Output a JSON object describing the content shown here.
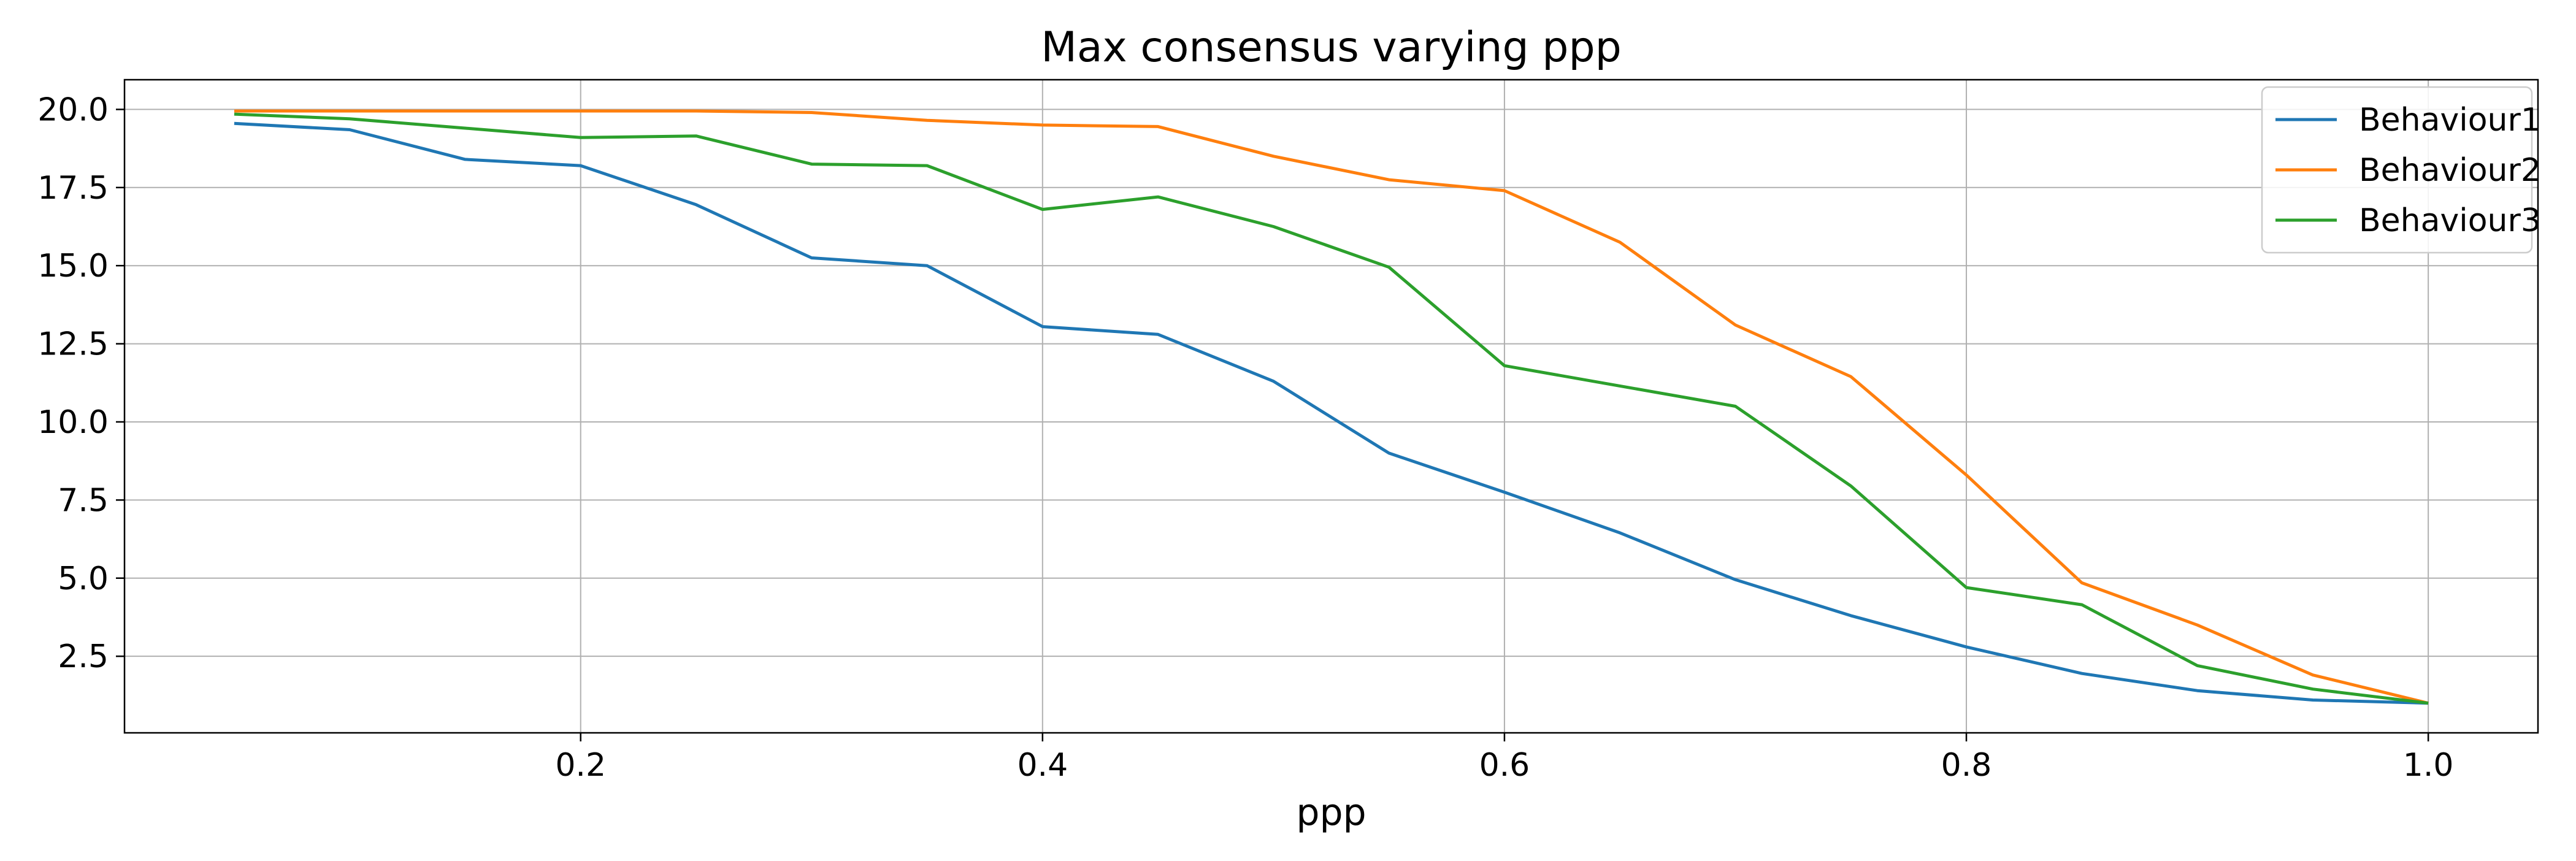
{
  "chart_data": {
    "type": "line",
    "title": "Max consensus varying ppp",
    "xlabel": "ppp",
    "ylabel": "",
    "xlim": [
      0.05,
      1.0
    ],
    "ylim": [
      1.0,
      20.0
    ],
    "x": [
      0.05,
      0.1,
      0.15,
      0.2,
      0.25,
      0.3,
      0.35,
      0.4,
      0.45,
      0.5,
      0.55,
      0.6,
      0.65,
      0.7,
      0.75,
      0.8,
      0.85,
      0.9,
      0.95,
      1.0
    ],
    "x_ticks": [
      0.2,
      0.4,
      0.6,
      0.8,
      1.0
    ],
    "x_tick_labels": [
      "0.2",
      "0.4",
      "0.6",
      "0.8",
      "1.0"
    ],
    "y_ticks": [
      2.5,
      5.0,
      7.5,
      10.0,
      12.5,
      15.0,
      17.5,
      20.0
    ],
    "y_tick_labels": [
      "2.5",
      "5.0",
      "7.5",
      "10.0",
      "12.5",
      "15.0",
      "17.5",
      "20.0"
    ],
    "grid": true,
    "legend_position": "top-right",
    "series": [
      {
        "name": "Behaviour1",
        "color": "#1f77b4",
        "values": [
          19.55,
          19.35,
          18.4,
          18.2,
          16.95,
          15.25,
          15.0,
          13.05,
          12.8,
          11.3,
          9.0,
          7.75,
          6.45,
          4.95,
          3.8,
          2.8,
          1.95,
          1.4,
          1.1,
          1.0
        ]
      },
      {
        "name": "Behaviour2",
        "color": "#ff7f0e",
        "values": [
          19.95,
          19.95,
          19.95,
          19.95,
          19.95,
          19.9,
          19.65,
          19.5,
          19.45,
          18.5,
          17.75,
          17.4,
          15.75,
          13.1,
          11.45,
          8.3,
          4.85,
          3.5,
          1.9,
          1.0
        ]
      },
      {
        "name": "Behaviour3",
        "color": "#2ca02c",
        "values": [
          19.85,
          19.7,
          19.4,
          19.1,
          19.15,
          18.25,
          18.2,
          16.8,
          17.2,
          16.25,
          14.95,
          11.8,
          11.15,
          10.5,
          7.95,
          4.7,
          4.15,
          2.2,
          1.45,
          1.0
        ]
      }
    ]
  }
}
